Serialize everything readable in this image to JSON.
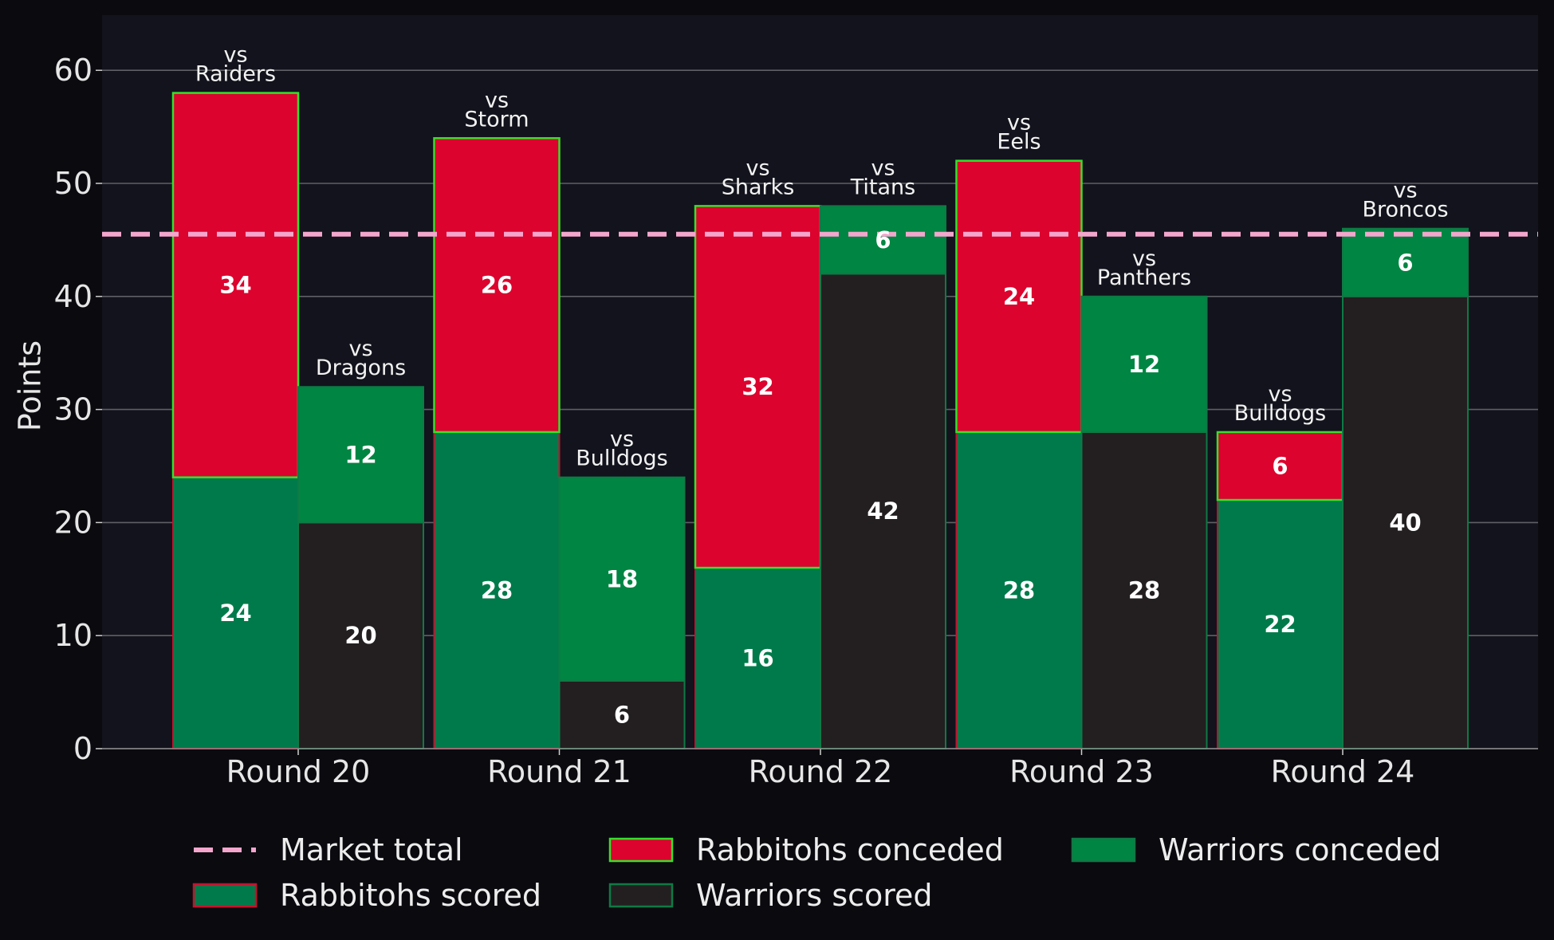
{
  "chart_data": {
    "type": "bar",
    "ylabel": "Points",
    "ylim": [
      0,
      65
    ],
    "yticks": [
      "0",
      "10",
      "20",
      "30",
      "40",
      "50",
      "60"
    ],
    "grid": true,
    "categories": [
      "Round 20",
      "Round 21",
      "Round 22",
      "Round 23",
      "Round 24"
    ],
    "rabbitohs": {
      "opponents": [
        "Raiders",
        "Storm",
        "Sharks",
        "Eels",
        "Bulldogs"
      ],
      "scored": [
        24,
        28,
        16,
        28,
        22
      ],
      "conceded": [
        34,
        26,
        32,
        24,
        6
      ]
    },
    "warriors": {
      "opponents": [
        "Dragons",
        "Bulldogs",
        "Titans",
        "Panthers",
        "Broncos"
      ],
      "scored": [
        20,
        6,
        42,
        28,
        40
      ],
      "conceded": [
        12,
        18,
        6,
        12,
        6
      ]
    },
    "vs_prefix": "vs",
    "market_total": 45.5,
    "legend": {
      "placement": "bottom",
      "items": [
        {
          "key": "market",
          "label": "Market total"
        },
        {
          "key": "rab_conceded",
          "label": "Rabbitohs conceded"
        },
        {
          "key": "war_conceded",
          "label": "Warriors conceded"
        },
        {
          "key": "rab_scored",
          "label": "Rabbitohs scored"
        },
        {
          "key": "war_scored",
          "label": "Warriors scored"
        }
      ]
    },
    "colors": {
      "page_bg": "#0a0a0f",
      "plot_bg": "#12131c",
      "grid": "#5f5f66",
      "rab_scored": "#007a4a",
      "rab_conceded": "#dc032e",
      "rab_edge_scored": "#c8102e",
      "rab_edge_conceded": "#36e02c",
      "war_scored": "#231f20",
      "war_conceded": "#008542",
      "war_edge": "#0e7a45",
      "market_line": "#f4a6cd"
    }
  }
}
